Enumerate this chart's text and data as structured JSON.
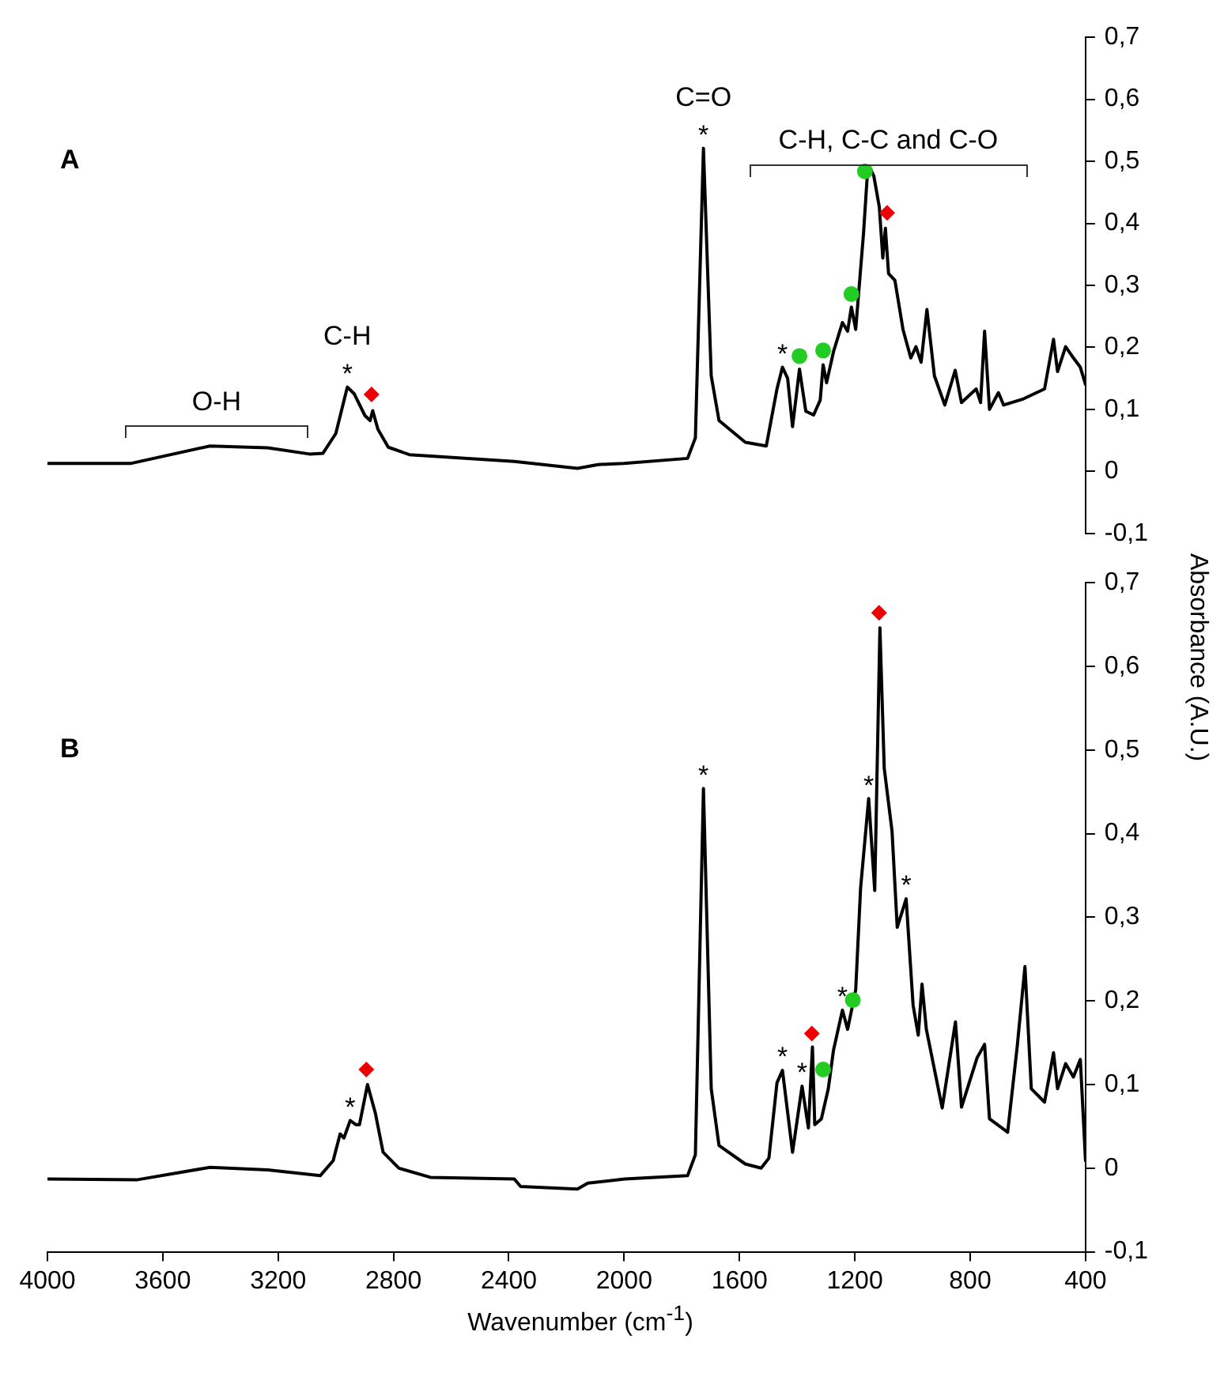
{
  "chart_data": [
    {
      "type": "line",
      "title": "A",
      "ylabel": "Absorbance (A.U.)",
      "xlim": [
        4000,
        400
      ],
      "xticks": [
        4000,
        3600,
        3200,
        2800,
        2400,
        2000,
        1600,
        1200,
        800,
        400
      ],
      "ylim": [
        -0.1,
        0.7
      ],
      "yticks": [
        {
          "value": -0.1,
          "label": "-0,1"
        },
        0,
        {
          "value": 0.1,
          "label": "0,1"
        },
        {
          "value": 0.2,
          "label": "0,2"
        },
        {
          "value": 0.3,
          "label": "0,3"
        },
        {
          "value": 0.4,
          "label": "0,4"
        },
        {
          "value": 0.5,
          "label": "0,5"
        },
        {
          "value": 0.6,
          "label": "0,6"
        },
        {
          "value": 0.7,
          "label": "0,7"
        }
      ],
      "tick_labels": "y",
      "marker": "none",
      "series": [
        {
          "color": "#000000",
          "x": [
            4000,
            3709,
            3436,
            3236,
            3091,
            3045,
            3000,
            2960,
            2936,
            2899,
            2881,
            2872,
            2854,
            2818,
            2745,
            2381,
            2162,
            2090,
            2001,
            1780,
            1753,
            1725,
            1698,
            1671,
            1580,
            1507,
            1470,
            1451,
            1433,
            1416,
            1392,
            1370,
            1343,
            1320,
            1310,
            1298,
            1274,
            1243,
            1225,
            1212,
            1197,
            1170,
            1157,
            1150,
            1134,
            1115,
            1103,
            1094,
            1083,
            1061,
            1033,
            1006,
            988,
            970,
            950,
            924,
            888,
            852,
            830,
            779,
            764,
            750,
            733,
            702,
            684,
            615,
            542,
            511,
            497,
            469,
            442,
            418,
            400
          ],
          "values": [
            0.013,
            0.013,
            0.041,
            0.038,
            0.028,
            0.029,
            0.061,
            0.136,
            0.125,
            0.09,
            0.082,
            0.098,
            0.068,
            0.039,
            0.027,
            0.016,
            0.005,
            0.011,
            0.013,
            0.021,
            0.054,
            0.521,
            0.154,
            0.082,
            0.047,
            0.041,
            0.133,
            0.168,
            0.15,
            0.072,
            0.165,
            0.097,
            0.091,
            0.115,
            0.172,
            0.143,
            0.193,
            0.24,
            0.226,
            0.265,
            0.229,
            0.383,
            0.476,
            0.492,
            0.476,
            0.426,
            0.344,
            0.392,
            0.319,
            0.308,
            0.229,
            0.183,
            0.201,
            0.176,
            0.261,
            0.154,
            0.107,
            0.163,
            0.111,
            0.133,
            0.111,
            0.226,
            0.1,
            0.127,
            0.107,
            0.117,
            0.133,
            0.213,
            0.161,
            0.201,
            0.183,
            0.168,
            0.14
          ]
        },
        {
          "type": "scatter",
          "marker": "circle",
          "color": "#22cc22",
          "x": [
            1392,
            1310,
            1212,
            1165
          ],
          "values": [
            0.186,
            0.195,
            0.286,
            0.484
          ]
        },
        {
          "type": "scatter",
          "marker": "diamond",
          "color": "#ee0000",
          "x": [
            2876,
            1088
          ],
          "values": [
            0.124,
            0.417
          ]
        }
      ],
      "annotations": [
        "O-H",
        "C-H, C-C and C-O",
        {
          "text": "*",
          "x": 2960,
          "y": 0.136
        },
        {
          "text": "C-H",
          "x": 2960,
          "y": 0.136
        },
        {
          "text": "*",
          "x": 1725,
          "y": 0.521
        },
        {
          "text": "C=O",
          "x": 1725,
          "y": 0.521
        },
        {
          "text": "*",
          "x": 1451,
          "y": 0.168
        }
      ]
    },
    {
      "type": "line",
      "title": "B",
      "xlabel": "Wavenumber (cm$^{-1}$)",
      "xlim": [
        4000,
        400
      ],
      "xticks": [
        4000,
        3600,
        3200,
        2800,
        2400,
        2000,
        1600,
        1200,
        800,
        400
      ],
      "ylim": [
        -0.1,
        0.7
      ],
      "yticks": [
        {
          "value": -0.1,
          "label": "-0,1"
        },
        0,
        {
          "value": 0.1,
          "label": "0,1"
        },
        {
          "value": 0.2,
          "label": "0,2"
        },
        {
          "value": 0.3,
          "label": "0,3"
        },
        {
          "value": 0.4,
          "label": "0,4"
        },
        {
          "value": 0.5,
          "label": "0,5"
        },
        {
          "value": 0.6,
          "label": "0,6"
        },
        {
          "value": 0.7,
          "label": "0,7"
        }
      ],
      "marker": "none",
      "series": [
        {
          "color": "#000000",
          "x": [
            4000,
            3691,
            3436,
            3236,
            3054,
            3009,
            2985,
            2972,
            2950,
            2930,
            2918,
            2890,
            2863,
            2836,
            2781,
            2672,
            2381,
            2359,
            2162,
            2126,
            1998,
            1780,
            1753,
            1725,
            1698,
            1671,
            1580,
            1525,
            1498,
            1470,
            1451,
            1416,
            1383,
            1361,
            1347,
            1339,
            1316,
            1292,
            1274,
            1243,
            1225,
            1197,
            1180,
            1152,
            1131,
            1113,
            1098,
            1071,
            1053,
            1022,
            998,
            980,
            967,
            952,
            897,
            851,
            830,
            776,
            750,
            733,
            670,
            637,
            610,
            588,
            542,
            511,
            497,
            469,
            442,
            418,
            400
          ],
          "values": [
            -0.013,
            -0.014,
            0.001,
            -0.002,
            -0.009,
            0.009,
            0.041,
            0.036,
            0.057,
            0.052,
            0.052,
            0.1,
            0.066,
            0.019,
            0,
            -0.011,
            -0.013,
            -0.022,
            -0.025,
            -0.018,
            -0.013,
            -0.009,
            0.016,
            0.454,
            0.095,
            0.027,
            0.005,
            0,
            0.012,
            0.102,
            0.117,
            0.019,
            0.098,
            0.048,
            0.145,
            0.052,
            0.059,
            0.095,
            0.141,
            0.189,
            0.166,
            0.213,
            0.335,
            0.442,
            0.332,
            0.646,
            0.478,
            0.403,
            0.288,
            0.322,
            0.195,
            0.159,
            0.22,
            0.166,
            0.072,
            0.175,
            0.073,
            0.132,
            0.148,
            0.059,
            0.043,
            0.145,
            0.241,
            0.095,
            0.079,
            0.138,
            0.095,
            0.125,
            0.109,
            0.13,
            0.009
          ]
        },
        {
          "type": "scatter",
          "marker": "circle",
          "color": "#22cc22",
          "x": [
            1310,
            1207
          ],
          "values": [
            0.118,
            0.201
          ]
        },
        {
          "type": "scatter",
          "marker": "diamond",
          "color": "#ee0000",
          "x": [
            2894,
            1349,
            1116
          ],
          "values": [
            0.118,
            0.161,
            0.664
          ]
        }
      ],
      "annotations": [
        {
          "text": "*",
          "x": 2950,
          "y": 0.057
        },
        {
          "text": "*",
          "x": 1725,
          "y": 0.454
        },
        {
          "text": "*",
          "x": 1451,
          "y": 0.117
        },
        {
          "text": "*",
          "x": 1383,
          "y": 0.098
        },
        {
          "text": "*",
          "x": 1243,
          "y": 0.189
        },
        {
          "text": "*",
          "x": 1152,
          "y": 0.442
        },
        {
          "text": "*",
          "x": 1022,
          "y": 0.322
        }
      ]
    }
  ]
}
